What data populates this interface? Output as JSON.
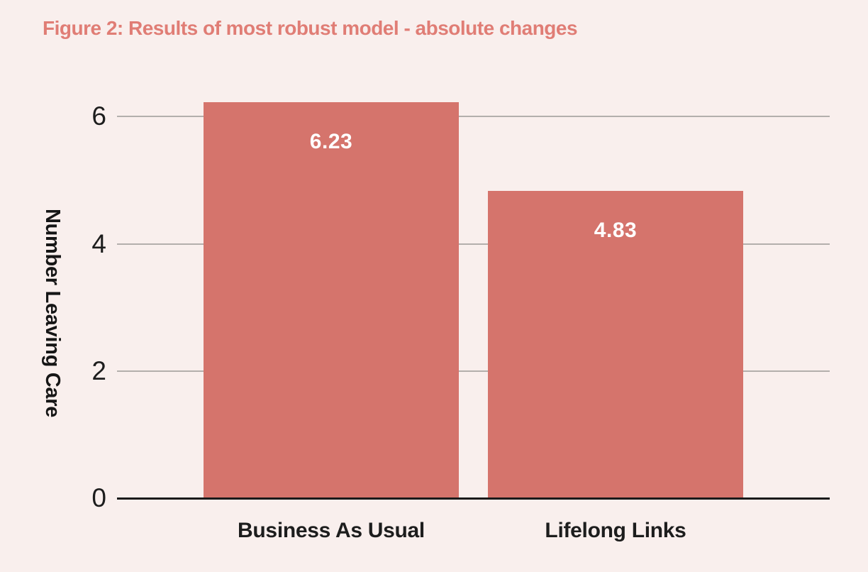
{
  "figure": {
    "title": "Figure 2: Results of most robust model - absolute changes"
  },
  "chart_data": {
    "type": "bar",
    "title": "Figure 2: Results of most robust model - absolute changes",
    "categories": [
      "Business As Usual",
      "Lifelong Links"
    ],
    "values": [
      6.23,
      4.83
    ],
    "value_labels": [
      "6.23",
      "4.83"
    ],
    "xlabel": "",
    "ylabel": "Number Leaving Care",
    "yticks": [
      0,
      2,
      4,
      6
    ],
    "ylim": [
      0,
      6.5
    ],
    "grid": true,
    "legend": "none",
    "value_label_position": "inside-top",
    "colors": {
      "bar": "#d5746c",
      "title_text": "#e07d75",
      "background": "#f9efed",
      "gridline": "#b3afac",
      "axis_line": "#1a1a1a",
      "tick_text": "#1d1d1d",
      "axis_title_text": "#161616",
      "category_text": "#1d1d1d",
      "value_label_text": "#ffffff"
    }
  }
}
